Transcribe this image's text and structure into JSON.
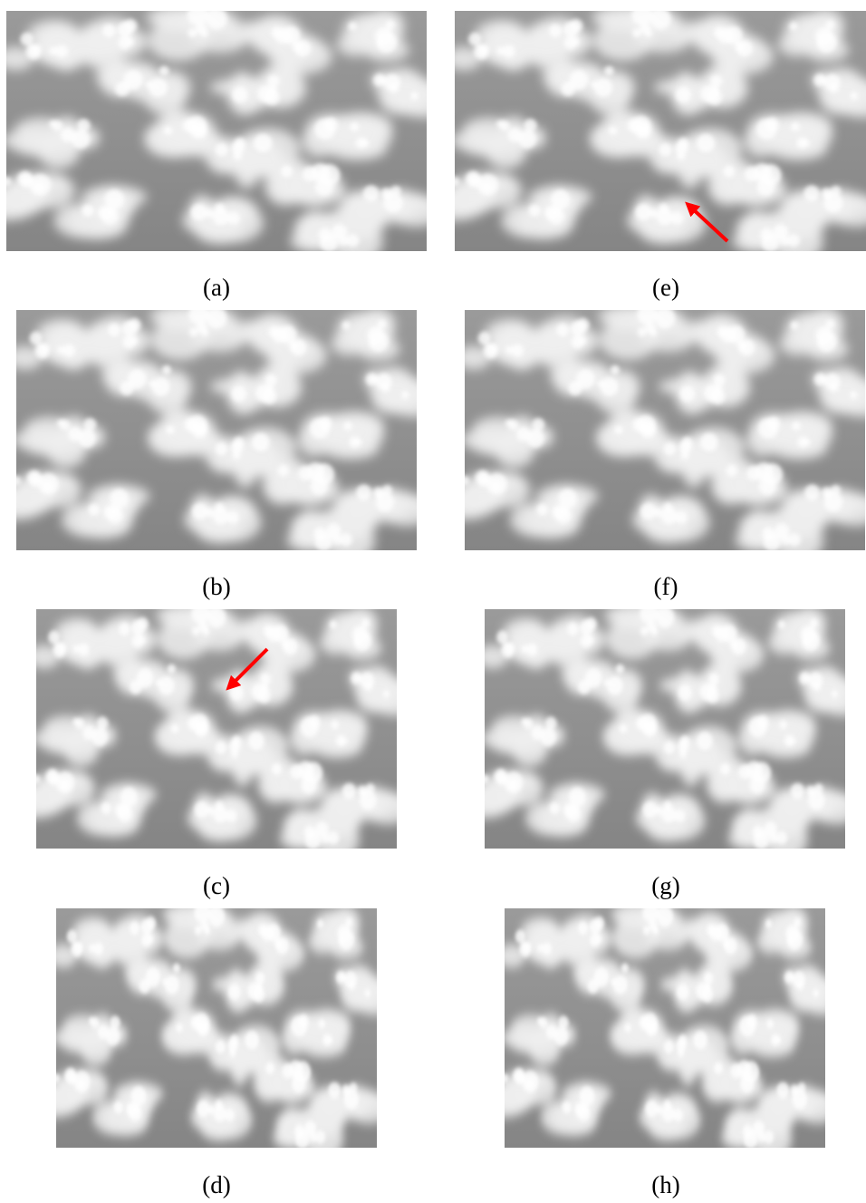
{
  "panels": [
    {
      "label": "(a)"
    },
    {
      "label": "(e)"
    },
    {
      "label": "(b)"
    },
    {
      "label": "(f)"
    },
    {
      "label": "(c)"
    },
    {
      "label": "(g)"
    },
    {
      "label": "(d)"
    },
    {
      "label": "(h)"
    }
  ]
}
